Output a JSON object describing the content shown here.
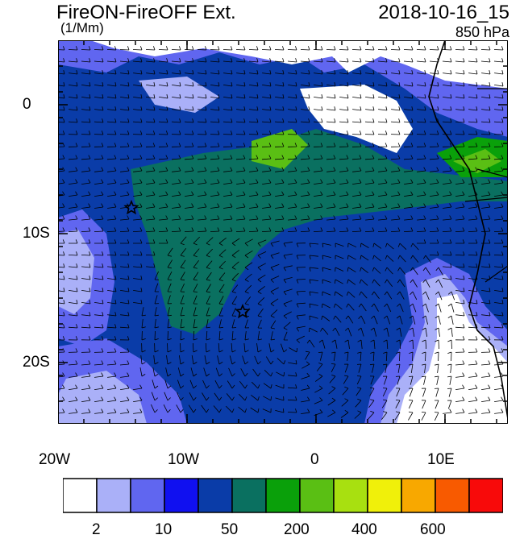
{
  "header": {
    "title": "FireON-FireOFF Ext.",
    "units": "(1/Mm)",
    "datetime": "2018-10-16_15",
    "level": "850 hPa"
  },
  "axes": {
    "lat_labels": [
      "0",
      "10S",
      "20S"
    ],
    "lon_labels": [
      "20W",
      "10W",
      "0",
      "10E"
    ]
  },
  "colorbar": {
    "colors": [
      "#ffffff",
      "#aab0f8",
      "#6066f0",
      "#1010f0",
      "#0a3ca8",
      "#0a7060",
      "#0aa00a",
      "#5abf14",
      "#a8e010",
      "#f0f00a",
      "#f8a800",
      "#f85a00",
      "#f80a0a"
    ],
    "labels": [
      "2",
      "10",
      "50",
      "200",
      "400",
      "600"
    ]
  },
  "markers": {
    "star_icon": "star"
  }
}
